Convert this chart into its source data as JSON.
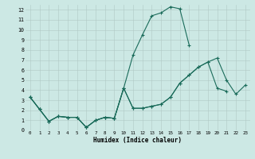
{
  "xlabel": "Humidex (Indice chaleur)",
  "bg_color": "#cce8e4",
  "grid_color": "#b0c8c4",
  "line_color": "#1a6b5a",
  "xlim": [
    -0.5,
    23.5
  ],
  "ylim": [
    0,
    12.5
  ],
  "xtick_labels": [
    "0",
    "1",
    "2",
    "3",
    "4",
    "5",
    "6",
    "7",
    "8",
    "9",
    "10",
    "11",
    "12",
    "13",
    "14",
    "15",
    "16",
    "17",
    "18",
    "19",
    "20",
    "21",
    "22",
    "23"
  ],
  "ytick_labels": [
    "0",
    "1",
    "2",
    "3",
    "4",
    "5",
    "6",
    "7",
    "8",
    "9",
    "10",
    "11",
    "12"
  ],
  "series": [
    {
      "x": [
        0,
        1,
        2,
        3,
        4,
        5,
        6,
        7,
        8,
        9,
        10,
        11,
        12,
        13,
        14,
        15,
        16,
        17
      ],
      "y": [
        3.3,
        2.1,
        0.9,
        1.4,
        1.3,
        1.3,
        0.3,
        1.0,
        1.3,
        1.2,
        4.2,
        7.5,
        9.5,
        11.4,
        11.7,
        12.3,
        12.1,
        8.5
      ]
    },
    {
      "x": [
        0,
        1,
        2,
        3,
        4,
        5,
        6,
        7,
        8,
        9,
        10,
        11,
        12,
        13,
        14,
        15,
        16,
        17,
        18,
        19,
        20,
        21,
        22,
        23
      ],
      "y": [
        3.3,
        2.1,
        0.9,
        1.4,
        1.3,
        1.3,
        0.3,
        1.0,
        1.3,
        1.2,
        4.2,
        2.2,
        2.2,
        2.4,
        2.6,
        3.3,
        4.7,
        5.5,
        6.3,
        6.8,
        7.2,
        5.0,
        3.6,
        4.5
      ]
    },
    {
      "x": [
        0,
        1,
        2,
        3,
        4,
        5,
        6,
        7,
        8,
        9,
        10,
        11,
        12,
        13,
        14,
        15,
        16,
        17,
        18,
        19,
        20,
        21
      ],
      "y": [
        3.3,
        2.1,
        0.9,
        1.4,
        1.3,
        1.3,
        0.3,
        1.0,
        1.3,
        1.2,
        4.2,
        2.2,
        2.2,
        2.4,
        2.6,
        3.3,
        4.7,
        5.5,
        6.3,
        6.8,
        4.2,
        3.9
      ]
    }
  ]
}
